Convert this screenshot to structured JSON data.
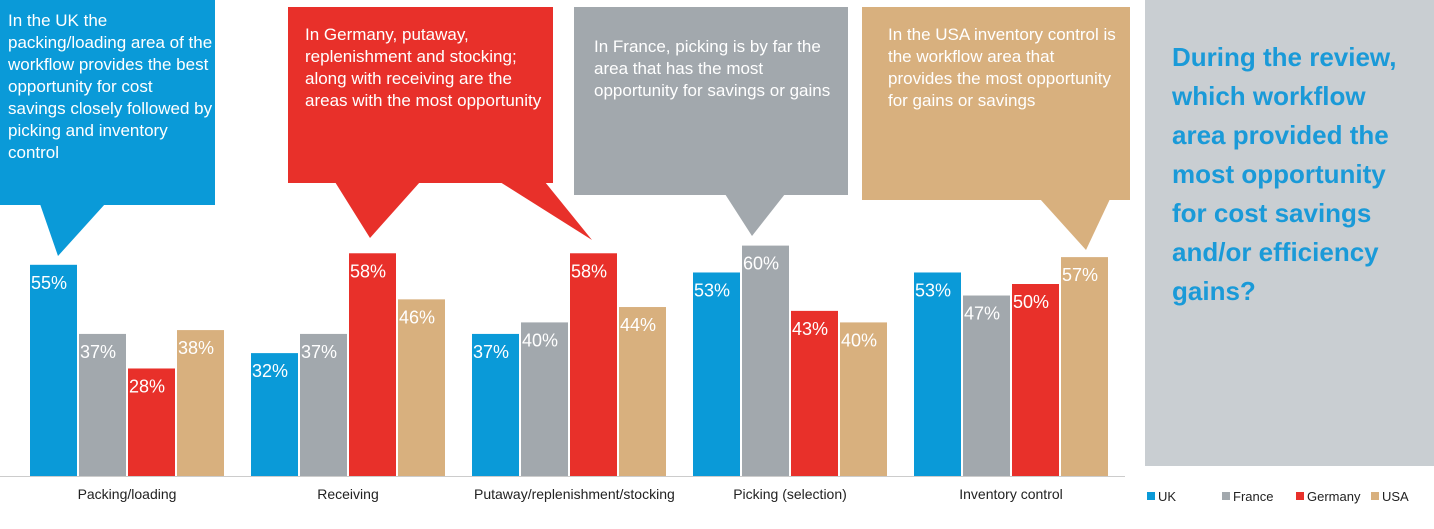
{
  "chart_data": {
    "type": "bar",
    "question": "During the review, which workflow area provided the most opportunity for cost savings and/or efficiency gains?",
    "annotations": [
      "In the UK the packing/loading area of the workflow provides the best opportunity for cost savings closely followed by picking and inventory control",
      "In Germany, putaway, replenishment and stocking; along with receiving are the areas with the most opportunity",
      "In France, picking is by far the area that has the most opportunity for savings or gains",
      "In the USA inventory control is the workflow area that provides the most opportunity for gains or savings"
    ],
    "categories": [
      "Packing/loading",
      "Receiving",
      "Putaway/replenishment/stocking",
      "Picking (selection)",
      "Inventory control"
    ],
    "series": [
      {
        "name": "UK",
        "color": "#0a9ad8",
        "values": [
          55,
          32,
          37,
          53,
          53
        ],
        "value_labels": [
          "55%",
          "32%",
          "37%",
          "53%",
          "53%"
        ]
      },
      {
        "name": "France",
        "color": "#a2a8ad",
        "values": [
          37,
          37,
          40,
          60,
          47
        ],
        "value_labels": [
          "37%",
          "37%",
          "40%",
          "60%",
          "47%"
        ]
      },
      {
        "name": "Germany",
        "color": "#e8302a",
        "values": [
          28,
          58,
          58,
          43,
          50
        ],
        "value_labels": [
          "28%",
          "58%",
          "58%",
          "43%",
          "50%"
        ]
      },
      {
        "name": "USA",
        "color": "#d8b07e",
        "values": [
          38,
          46,
          44,
          40,
          57
        ],
        "value_labels": [
          "38%",
          "46%",
          "44%",
          "40%",
          "57%"
        ]
      }
    ],
    "ylim": [
      0,
      100
    ]
  }
}
